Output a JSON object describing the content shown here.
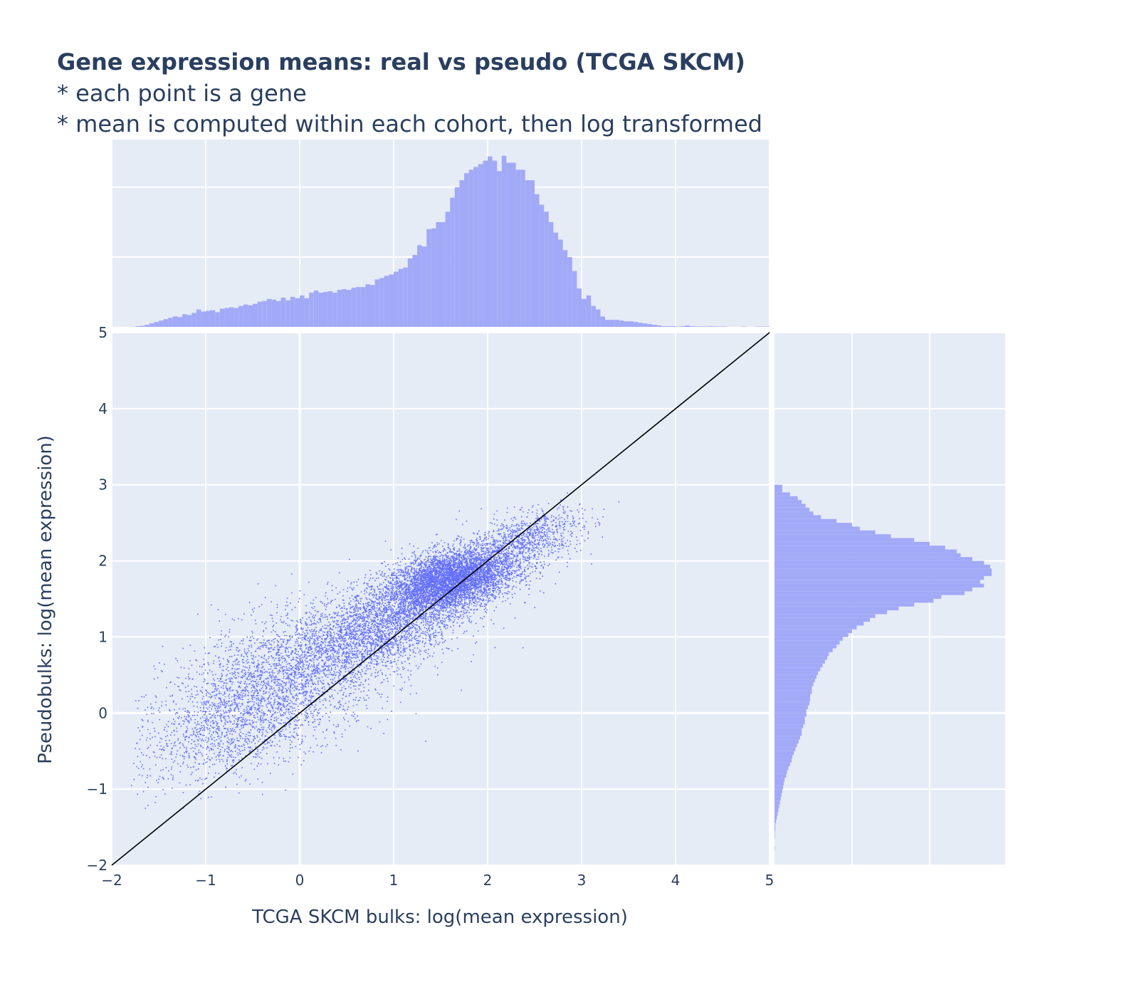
{
  "title": "Gene expression means: real vs pseudo (TCGA SKCM)",
  "subtitle_lines": [
    "* each point is a gene",
    "* mean is computed within each cohort, then log transformed"
  ],
  "colors": {
    "marker": "#636efa",
    "histogram": "#a2aaf7",
    "plot_bg": "#e5ecf6",
    "grid": "#ffffff",
    "text": "#2a3f5f",
    "diagonal": "#000000"
  },
  "chart_data": {
    "type": "scatter",
    "marginal": "histogram",
    "xlabel": "TCGA SKCM bulks: log(mean expression)",
    "ylabel": "Pseudobulks: log(mean expression)",
    "xlim": [
      -2,
      5
    ],
    "ylim": [
      -2,
      5
    ],
    "x_ticks": [
      -2,
      -1,
      0,
      1,
      2,
      3,
      4,
      5
    ],
    "y_ticks": [
      -2,
      -1,
      0,
      1,
      2,
      3,
      4,
      5
    ],
    "x_tick_labels": [
      "−2",
      "−1",
      "0",
      "1",
      "2",
      "3",
      "4",
      "5"
    ],
    "y_tick_labels": [
      "−2",
      "−1",
      "0",
      "1",
      "2",
      "3",
      "4",
      "5"
    ],
    "grid": true,
    "reference_line": {
      "from": [
        -2,
        -2
      ],
      "to": [
        5,
        5
      ]
    },
    "point_clusters": [
      {
        "x_center": 1.6,
        "y_center": 1.75,
        "x_sd": 0.35,
        "y_sd": 0.28,
        "count": 5500
      },
      {
        "x_center": 0.8,
        "y_center": 1.1,
        "x_sd": 0.45,
        "y_sd": 0.4,
        "count": 2500
      },
      {
        "x_center": -0.2,
        "y_center": 0.4,
        "x_sd": 0.6,
        "y_sd": 0.6,
        "count": 2500
      },
      {
        "x_center": 2.4,
        "y_center": 2.3,
        "x_sd": 0.3,
        "y_sd": 0.25,
        "count": 900
      },
      {
        "x_center": -0.8,
        "y_center": -0.2,
        "x_sd": 0.5,
        "y_sd": 0.5,
        "count": 900
      }
    ],
    "top_histogram": {
      "bin_start": -1.75,
      "bin_width": 0.05,
      "counts": [
        2,
        3,
        6,
        10,
        14,
        18,
        22,
        26,
        30,
        28,
        36,
        34,
        40,
        50,
        44,
        46,
        48,
        42,
        52,
        54,
        56,
        54,
        60,
        64,
        62,
        66,
        72,
        74,
        80,
        78,
        74,
        84,
        76,
        86,
        82,
        90,
        82,
        98,
        104,
        98,
        100,
        102,
        98,
        106,
        108,
        106,
        112,
        114,
        114,
        122,
        120,
        136,
        140,
        146,
        150,
        158,
        166,
        170,
        196,
        206,
        234,
        230,
        280,
        282,
        300,
        300,
        330,
        370,
        400,
        420,
        440,
        450,
        458,
        466,
        476,
        488,
        476,
        446,
        490,
        470,
        470,
        450,
        450,
        420,
        420,
        380,
        350,
        330,
        300,
        270,
        250,
        220,
        200,
        160,
        110,
        80,
        90,
        60,
        50,
        30,
        20,
        20,
        20,
        18,
        16,
        16,
        14,
        12,
        10,
        8,
        6,
        4,
        2,
        2,
        2,
        1,
        2,
        4,
        2,
        1,
        1,
        1,
        2,
        1,
        1,
        1,
        0,
        0,
        0,
        1,
        0,
        0,
        1,
        1,
        1,
        0
      ]
    },
    "right_histogram": {
      "bin_start": -1.8,
      "bin_width": 0.05,
      "counts": [
        1,
        0,
        0,
        1,
        1,
        2,
        2,
        4,
        6,
        8,
        10,
        12,
        14,
        16,
        18,
        20,
        22,
        24,
        26,
        30,
        32,
        36,
        40,
        44,
        46,
        50,
        54,
        58,
        62,
        66,
        70,
        70,
        74,
        78,
        78,
        82,
        82,
        86,
        90,
        92,
        92,
        96,
        96,
        100,
        104,
        108,
        112,
        118,
        124,
        130,
        136,
        140,
        150,
        160,
        168,
        176,
        190,
        200,
        212,
        230,
        246,
        260,
        290,
        320,
        360,
        410,
        430,
        490,
        510,
        540,
        530,
        540,
        560,
        560,
        556,
        540,
        510,
        480,
        470,
        440,
        400,
        360,
        300,
        260,
        220,
        200,
        160,
        120,
        100,
        90,
        80,
        70,
        60,
        40,
        20,
        20
      ]
    }
  }
}
